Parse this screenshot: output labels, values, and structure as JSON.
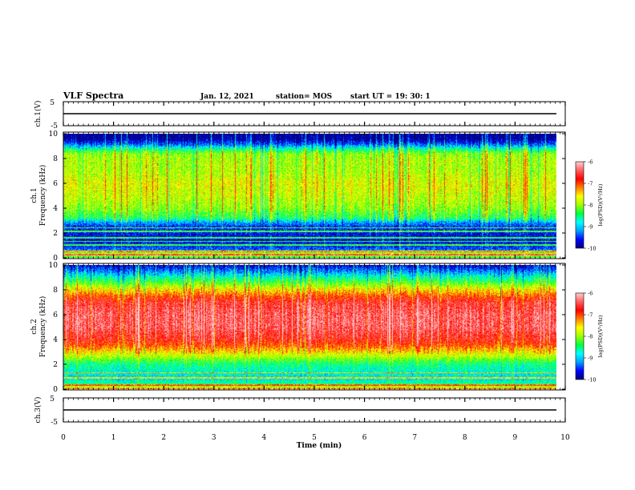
{
  "header": {
    "title": "VLF Spectra",
    "date": "Jan. 12, 2021",
    "station": "station= MOS",
    "start": "start  UT =   19: 30: 1"
  },
  "colors": {
    "background": "#ffffff",
    "axis": "#000000",
    "spectrogram_floor": "#000050",
    "colormap": [
      "#00007a",
      "#0000ff",
      "#00a0ff",
      "#00ffff",
      "#00ff40",
      "#a0ff00",
      "#ffff00",
      "#ff8000",
      "#ff0000",
      "#ff6060",
      "#ffd0d0"
    ]
  },
  "chart_data": [
    {
      "type": "line",
      "panel": "ch1-waveform",
      "ylabel": "ch.1(V)",
      "ylim": [
        -5,
        5
      ],
      "yticks": [
        "5",
        "-5"
      ],
      "xlim": [
        0,
        10
      ],
      "trace_level": 0
    },
    {
      "type": "heatmap",
      "panel": "ch1-spectrogram",
      "ylabel": "ch.1\nFrequency (kHz)",
      "ylim": [
        0,
        10
      ],
      "yticks": [
        "0",
        "2",
        "4",
        "6",
        "8",
        "10"
      ],
      "xlim": [
        0,
        10
      ],
      "x_data_end": 9.83,
      "colorbar": {
        "label": "log(PSD)(V²/Hz)",
        "range": [
          -10,
          -6
        ],
        "ticks": [
          "-6",
          "-7",
          "-8",
          "-9",
          "-10"
        ]
      },
      "profile_freq_khz": [
        0,
        0.3,
        0.6,
        1,
        1.5,
        2,
        2.5,
        2.8,
        3.2,
        4,
        5,
        6,
        7,
        7.8,
        8.4,
        8.8,
        9.2,
        9.6,
        10
      ],
      "profile_log_psd": [
        -8.3,
        -7.6,
        -9.3,
        -9.6,
        -9.7,
        -9.6,
        -9.5,
        -9.2,
        -8.4,
        -8.0,
        -7.8,
        -7.7,
        -7.9,
        -7.9,
        -8.0,
        -8.6,
        -9.4,
        -9.9,
        -10
      ],
      "lines_khz": [
        0.2,
        0.5,
        1.0,
        1.3,
        1.6,
        2.1,
        2.4
      ]
    },
    {
      "type": "heatmap",
      "panel": "ch2-spectrogram",
      "ylabel": "ch.2\nFrequency (kHz)",
      "ylim": [
        0,
        10
      ],
      "yticks": [
        "0",
        "2",
        "4",
        "6",
        "8",
        "10"
      ],
      "xlim": [
        0,
        10
      ],
      "x_data_end": 9.83,
      "colorbar": {
        "label": "log(PSD)(V²/Hz)",
        "range": [
          -10,
          -6
        ],
        "ticks": [
          "-6",
          "-7",
          "-8",
          "-9",
          "-10"
        ]
      },
      "profile_freq_khz": [
        0,
        0.3,
        0.8,
        1.5,
        2,
        2.5,
        3,
        3.5,
        4,
        5,
        6,
        7,
        7.5,
        8,
        8.5,
        9,
        9.5,
        10
      ],
      "profile_log_psd": [
        -7.2,
        -8.4,
        -8.9,
        -8.7,
        -8.5,
        -8.0,
        -7.5,
        -7.0,
        -6.7,
        -6.4,
        -6.4,
        -6.6,
        -7.0,
        -7.5,
        -8.1,
        -8.6,
        -9.2,
        -9.7
      ],
      "lines_khz": [
        0.3,
        0.9,
        1.3
      ]
    },
    {
      "type": "line",
      "panel": "ch3-waveform",
      "ylabel": "ch.3(V)",
      "ylim": [
        -5,
        5
      ],
      "yticks": [
        "5",
        "-5"
      ],
      "xlim": [
        0,
        10
      ],
      "trace_level": 0
    }
  ],
  "xaxis": {
    "label": "Time (min)",
    "range": [
      0,
      10
    ],
    "ticks": [
      "0",
      "1",
      "2",
      "3",
      "4",
      "5",
      "6",
      "7",
      "8",
      "9",
      "10"
    ]
  }
}
